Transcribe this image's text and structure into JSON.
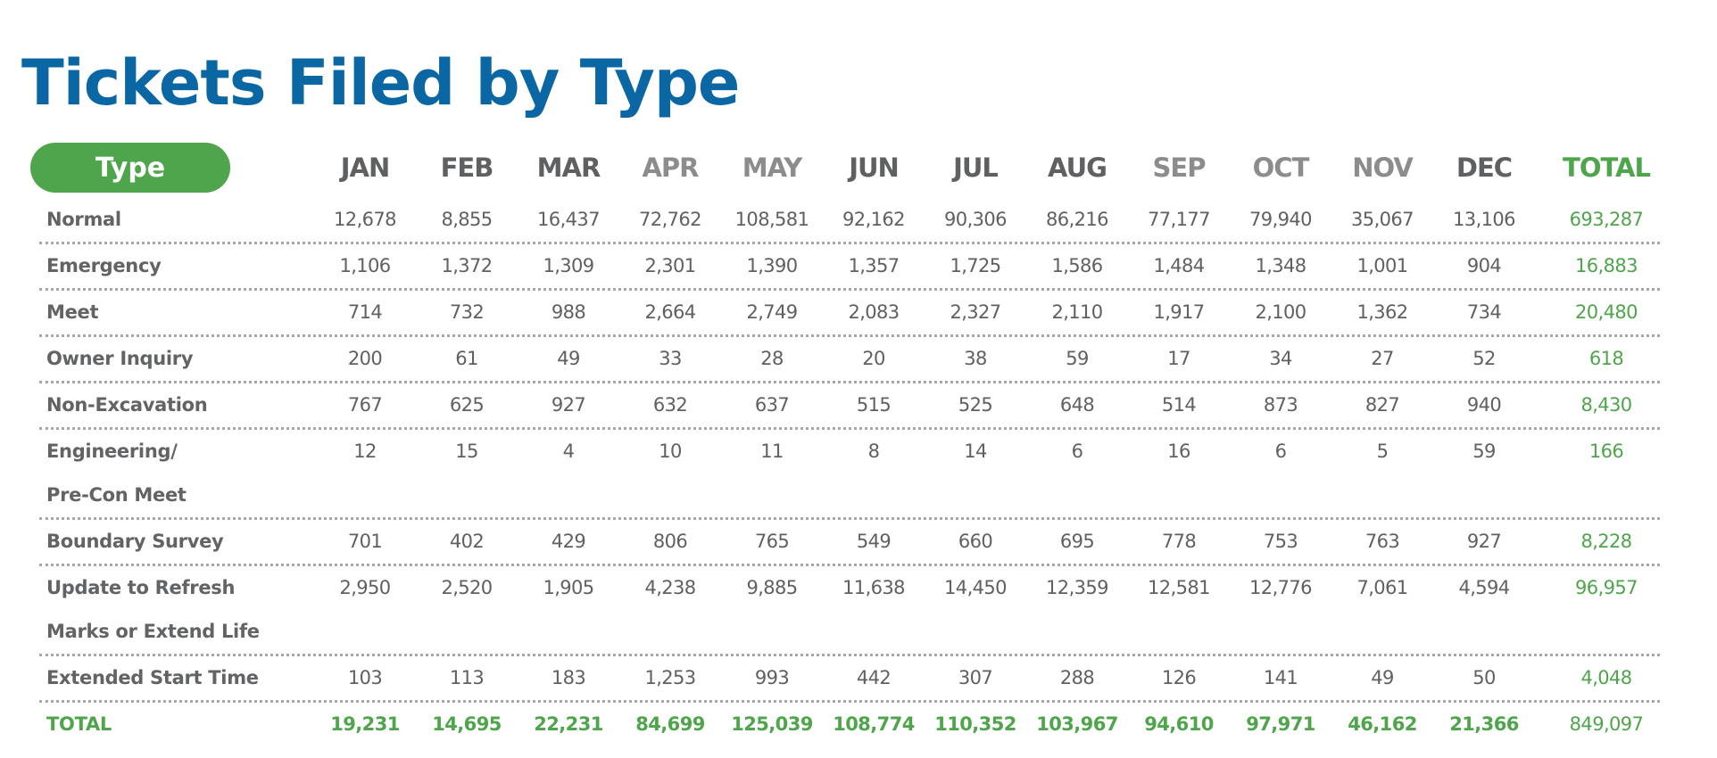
{
  "title": "Tickets Filed by Type",
  "colors": {
    "title": "#0b67a4",
    "accent_green": "#4fa54b",
    "text_gray": "#5f6062",
    "header_dark": "#5f6062",
    "header_light": "#8c8c8e"
  },
  "header": {
    "type_label": "Type",
    "months": [
      {
        "label": "JAN",
        "tone": "dark"
      },
      {
        "label": "FEB",
        "tone": "dark"
      },
      {
        "label": "MAR",
        "tone": "dark"
      },
      {
        "label": "APR",
        "tone": "light"
      },
      {
        "label": "MAY",
        "tone": "light"
      },
      {
        "label": "JUN",
        "tone": "dark"
      },
      {
        "label": "JUL",
        "tone": "dark"
      },
      {
        "label": "AUG",
        "tone": "dark"
      },
      {
        "label": "SEP",
        "tone": "light"
      },
      {
        "label": "OCT",
        "tone": "light"
      },
      {
        "label": "NOV",
        "tone": "light"
      },
      {
        "label": "DEC",
        "tone": "dark"
      }
    ],
    "total_label": "TOTAL"
  },
  "rows": [
    {
      "label": [
        "Normal"
      ],
      "values": [
        "12,678",
        "8,855",
        "16,437",
        "72,762",
        "108,581",
        "92,162",
        "90,306",
        "86,216",
        "77,177",
        "79,940",
        "35,067",
        "13,106"
      ],
      "total": "693,287"
    },
    {
      "label": [
        "Emergency"
      ],
      "values": [
        "1,106",
        "1,372",
        "1,309",
        "2,301",
        "1,390",
        "1,357",
        "1,725",
        "1,586",
        "1,484",
        "1,348",
        "1,001",
        "904"
      ],
      "total": "16,883"
    },
    {
      "label": [
        "Meet"
      ],
      "values": [
        "714",
        "732",
        "988",
        "2,664",
        "2,749",
        "2,083",
        "2,327",
        "2,110",
        "1,917",
        "2,100",
        "1,362",
        "734"
      ],
      "total": "20,480"
    },
    {
      "label": [
        "Owner Inquiry"
      ],
      "values": [
        "200",
        "61",
        "49",
        "33",
        "28",
        "20",
        "38",
        "59",
        "17",
        "34",
        "27",
        "52"
      ],
      "total": "618"
    },
    {
      "label": [
        "Non-Excavation"
      ],
      "values": [
        "767",
        "625",
        "927",
        "632",
        "637",
        "515",
        "525",
        "648",
        "514",
        "873",
        "827",
        "940"
      ],
      "total": "8,430"
    },
    {
      "label": [
        "Engineering/",
        "Pre-Con Meet"
      ],
      "values": [
        "12",
        "15",
        "4",
        "10",
        "11",
        "8",
        "14",
        "6",
        "16",
        "6",
        "5",
        "59"
      ],
      "total": "166"
    },
    {
      "label": [
        "Boundary Survey"
      ],
      "values": [
        "701",
        "402",
        "429",
        "806",
        "765",
        "549",
        "660",
        "695",
        "778",
        "753",
        "763",
        "927"
      ],
      "total": "8,228"
    },
    {
      "label": [
        "Update to Refresh",
        "Marks or Extend Life"
      ],
      "values": [
        "2,950",
        "2,520",
        "1,905",
        "4,238",
        "9,885",
        "11,638",
        "14,450",
        "12,359",
        "12,581",
        "12,776",
        "7,061",
        "4,594"
      ],
      "total": "96,957"
    },
    {
      "label": [
        "Extended Start Time"
      ],
      "values": [
        "103",
        "113",
        "183",
        "1,253",
        "993",
        "442",
        "307",
        "288",
        "126",
        "141",
        "49",
        "50"
      ],
      "total": "4,048"
    }
  ],
  "totals": {
    "label": "TOTAL",
    "values": [
      "19,231",
      "14,695",
      "22,231",
      "84,699",
      "125,039",
      "108,774",
      "110,352",
      "103,967",
      "94,610",
      "97,971",
      "46,162",
      "21,366"
    ],
    "total": "849,097"
  }
}
